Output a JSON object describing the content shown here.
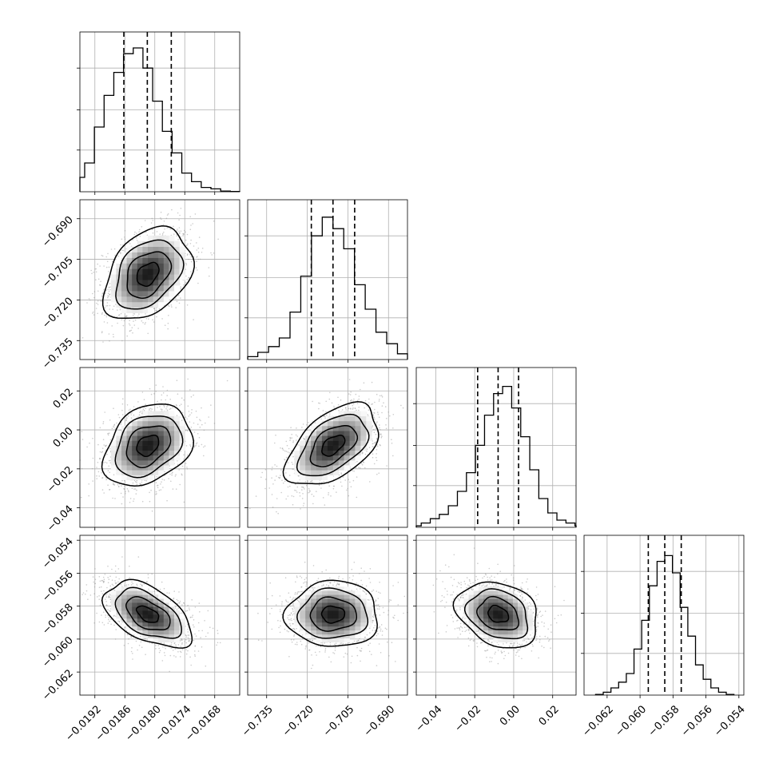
{
  "chart_data": {
    "type": "corner",
    "grid": true,
    "params": [
      {
        "range": [
          -0.0195,
          -0.0163
        ],
        "ticks": [
          -0.0192,
          -0.0186,
          -0.018,
          -0.0174,
          -0.0168
        ],
        "tick_labels": [
          "−0.0192",
          "−0.0186",
          "−0.0180",
          "−0.0174",
          "−0.0168"
        ],
        "mean": -0.01814,
        "sd": 0.00044,
        "quantiles": [
          -0.01862,
          -0.01815,
          -0.01767
        ],
        "hist_heights": [
          0.02,
          0.04,
          0.1,
          0.2,
          0.45,
          0.67,
          0.83,
          0.96,
          1.0,
          0.86,
          0.63,
          0.42,
          0.27,
          0.13,
          0.07,
          0.03,
          0.02,
          0.005,
          0.002
        ]
      },
      {
        "range": [
          -0.742,
          -0.683
        ],
        "ticks": [
          -0.735,
          -0.72,
          -0.705,
          -0.69
        ],
        "tick_labels": [
          "−0.735",
          "−0.720",
          "−0.705",
          "−0.690"
        ],
        "mean": -0.7105,
        "sd": 0.0085,
        "quantiles": [
          -0.7185,
          -0.7105,
          -0.7025
        ],
        "hist_heights": [
          0.005,
          0.02,
          0.05,
          0.09,
          0.15,
          0.33,
          0.58,
          0.86,
          0.99,
          0.91,
          0.77,
          0.52,
          0.35,
          0.19,
          0.11,
          0.04,
          0.01,
          0.01
        ]
      },
      {
        "range": [
          -0.05,
          0.032
        ],
        "ticks": [
          -0.04,
          -0.02,
          0.0,
          0.02
        ],
        "tick_labels": [
          "−0.04",
          "−0.02",
          "0.00",
          "0.02"
        ],
        "mean": -0.008,
        "sd": 0.0105,
        "quantiles": [
          -0.0185,
          -0.008,
          0.0025
        ],
        "hist_heights": [
          0.01,
          0.03,
          0.06,
          0.09,
          0.15,
          0.25,
          0.38,
          0.57,
          0.78,
          0.93,
          0.98,
          0.83,
          0.63,
          0.4,
          0.2,
          0.1,
          0.05,
          0.03,
          0.01
        ]
      },
      {
        "range": [
          -0.0634,
          -0.0537
        ],
        "ticks": [
          -0.062,
          -0.06,
          -0.058,
          -0.056,
          -0.054
        ],
        "tick_labels": [
          "−0.062",
          "−0.060",
          "−0.058",
          "−0.056",
          "−0.054"
        ],
        "mean": -0.0585,
        "sd": 0.001,
        "quantiles": [
          -0.0595,
          -0.0585,
          -0.0575
        ],
        "hist_heights": [
          0.005,
          0.02,
          0.05,
          0.09,
          0.15,
          0.32,
          0.52,
          0.76,
          0.93,
          0.97,
          0.85,
          0.61,
          0.41,
          0.21,
          0.11,
          0.05,
          0.02,
          0.005
        ]
      }
    ],
    "correlations": [
      {
        "pair": [
          0,
          1
        ],
        "r": 0.35
      },
      {
        "pair": [
          0,
          2
        ],
        "r": 0.3
      },
      {
        "pair": [
          1,
          2
        ],
        "r": 0.5
      },
      {
        "pair": [
          0,
          3
        ],
        "r": -0.5
      },
      {
        "pair": [
          1,
          3
        ],
        "r": 0.0
      },
      {
        "pair": [
          2,
          3
        ],
        "r": -0.25
      }
    ]
  }
}
